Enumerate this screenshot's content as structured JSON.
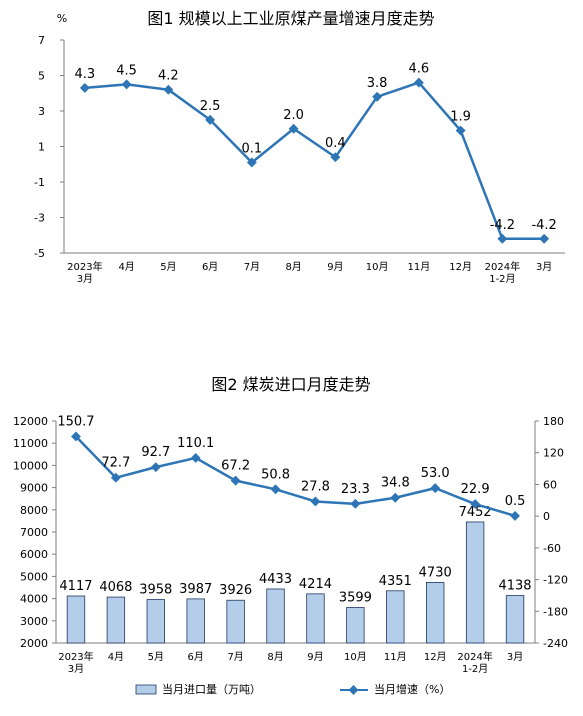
{
  "chart_data": [
    {
      "type": "line",
      "title": "图1  规模以上工业原煤产量增速月度走势",
      "ylabel": "%",
      "ylim": [
        -5,
        7
      ],
      "yticks": [
        "7",
        "5",
        "3",
        "1",
        "-1",
        "-3",
        "-5"
      ],
      "categories": [
        [
          "2023年",
          "3月"
        ],
        [
          "4月"
        ],
        [
          "5月"
        ],
        [
          "6月"
        ],
        [
          "7月"
        ],
        [
          "8月"
        ],
        [
          "9月"
        ],
        [
          "10月"
        ],
        [
          "11月"
        ],
        [
          "12月"
        ],
        [
          "2024年",
          "1-2月"
        ],
        [
          "3月"
        ]
      ],
      "series": [
        {
          "values": [
            4.3,
            4.5,
            4.2,
            2.5,
            0.1,
            2.0,
            0.4,
            3.8,
            4.6,
            1.9,
            -4.2,
            -4.2
          ],
          "labels": [
            "4.3",
            "4.5",
            "4.2",
            "2.5",
            "0.1",
            "2.0",
            "0.4",
            "3.8",
            "4.6",
            "1.9",
            "-4.2",
            "-4.2"
          ],
          "color": "#2e75b6"
        }
      ],
      "grid": false
    },
    {
      "type": "bar+line",
      "title": "图2  煤炭进口月度走势",
      "categories": [
        [
          "2023年",
          "3月"
        ],
        [
          "4月"
        ],
        [
          "5月"
        ],
        [
          "6月"
        ],
        [
          "7月"
        ],
        [
          "8月"
        ],
        [
          "9月"
        ],
        [
          "10月"
        ],
        [
          "11月"
        ],
        [
          "12月"
        ],
        [
          "2024年",
          "1-2月"
        ],
        [
          "3月"
        ]
      ],
      "ylim_left": [
        2000,
        12000
      ],
      "yticks_left": [
        "12000",
        "11000",
        "10000",
        "9000",
        "8000",
        "7000",
        "6000",
        "5000",
        "4000",
        "3000",
        "2000"
      ],
      "ylim_right": [
        -240,
        180
      ],
      "yticks_right": [
        "180",
        "120",
        "60",
        "0",
        "-60",
        "-120",
        "-180",
        "-240"
      ],
      "series": [
        {
          "name": "当月进口量（万吨）",
          "type": "bar",
          "axis": "left",
          "values": [
            4117,
            4068,
            3958,
            3987,
            3926,
            4433,
            4214,
            3599,
            4351,
            4730,
            7452,
            4138
          ],
          "labels": [
            "4117",
            "4068",
            "3958",
            "3987",
            "3926",
            "4433",
            "4214",
            "3599",
            "4351",
            "4730",
            "7452",
            "4138"
          ],
          "color": "#b4cde8"
        },
        {
          "name": "当月增速（%）",
          "type": "line",
          "axis": "right",
          "values": [
            150.7,
            72.7,
            92.7,
            110.1,
            67.2,
            50.8,
            27.8,
            23.3,
            34.8,
            53.0,
            22.9,
            0.5
          ],
          "labels": [
            "150.7",
            "72.7",
            "92.7",
            "110.1",
            "67.2",
            "50.8",
            "27.8",
            "23.3",
            "34.8",
            "53.0",
            "22.9",
            "0.5"
          ],
          "color": "#2e75b6"
        }
      ],
      "legend": "bottom"
    }
  ]
}
